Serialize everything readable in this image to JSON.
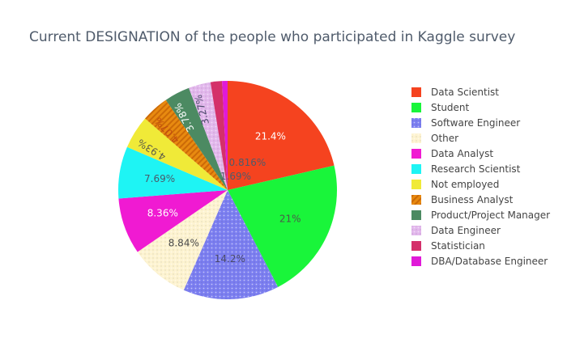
{
  "chart_data": {
    "type": "pie",
    "title": "Current DESIGNATION of the people who participated in Kaggle survey",
    "legend_position": "right",
    "slices": [
      {
        "label": "Data Scientist",
        "percent": 21.4,
        "percent_label": "21.4%",
        "color": "#f5431f",
        "pattern": "none",
        "text_color": "#ffffff",
        "text_position": "inside"
      },
      {
        "label": "Student",
        "percent": 21.0,
        "percent_label": "21%",
        "color": "#19f53a",
        "pattern": "none",
        "text_color": "#4a5a4a",
        "text_position": "inside"
      },
      {
        "label": "Software Engineer",
        "percent": 14.2,
        "percent_label": "14.2%",
        "color": "#7b7ef0",
        "pattern": "dots",
        "text_color": "#4a4a6a",
        "text_position": "inside"
      },
      {
        "label": "Other",
        "percent": 8.84,
        "percent_label": "8.84%",
        "color": "#fdf3d0",
        "pattern": "dots",
        "text_color": "#4a4a4a",
        "text_position": "inside"
      },
      {
        "label": "Data Analyst",
        "percent": 8.36,
        "percent_label": "8.36%",
        "color": "#f01ad2",
        "pattern": "none",
        "text_color": "#ffffff",
        "text_position": "inside"
      },
      {
        "label": "Research Scientist",
        "percent": 7.69,
        "percent_label": "7.69%",
        "color": "#1ef4f4",
        "pattern": "none",
        "text_color": "#4a5a6a",
        "text_position": "inside"
      },
      {
        "label": "Not employed",
        "percent": 4.93,
        "percent_label": "4.93%",
        "color": "#f0ea38",
        "pattern": "none",
        "text_color": "#5a5a4a",
        "text_position": "inside"
      },
      {
        "label": "Business Analyst",
        "percent": 4.07,
        "percent_label": "4.07%",
        "color": "#e88a10",
        "pattern": "stripes",
        "text_color": "#c04a10",
        "text_position": "inside"
      },
      {
        "label": "Product/Project Manager",
        "percent": 3.78,
        "percent_label": "3.78%",
        "color": "#4c8a62",
        "pattern": "none",
        "text_color": "#ffffff",
        "text_position": "inside"
      },
      {
        "label": "Data Engineer",
        "percent": 3.27,
        "percent_label": "3.27%",
        "color": "#e2b7ec",
        "pattern": "dots",
        "text_color": "#4a4a6a",
        "text_position": "inside"
      },
      {
        "label": "Statistician",
        "percent": 1.69,
        "percent_label": "1.69%",
        "color": "#d4306a",
        "pattern": "none",
        "text_color": "#4f5b6b",
        "text_position": "outside"
      },
      {
        "label": "DBA/Database Engineer",
        "percent": 0.816,
        "percent_label": "0.816%",
        "color": "#e01ad8",
        "pattern": "none",
        "text_color": "#4f5b6b",
        "text_position": "outside"
      }
    ]
  }
}
